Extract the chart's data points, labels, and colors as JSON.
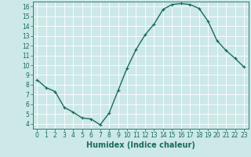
{
  "xlabel": "Humidex (Indice chaleur)",
  "ylabel": "",
  "x_values": [
    0,
    1,
    2,
    3,
    4,
    5,
    6,
    7,
    8,
    9,
    10,
    11,
    12,
    13,
    14,
    15,
    16,
    17,
    18,
    19,
    20,
    21,
    22,
    23
  ],
  "y_values": [
    8.5,
    7.7,
    7.3,
    5.7,
    5.2,
    4.6,
    4.5,
    3.9,
    5.1,
    7.4,
    9.7,
    11.6,
    13.1,
    14.2,
    15.7,
    16.2,
    16.3,
    16.2,
    15.8,
    14.5,
    12.5,
    11.5,
    10.7,
    9.8
  ],
  "line_color": "#1a6b5a",
  "marker": "+",
  "marker_size": 3,
  "bg_color": "#cce8e8",
  "grid_color": "#ffffff",
  "xlim": [
    -0.5,
    23.5
  ],
  "ylim": [
    3.5,
    16.5
  ],
  "xticks": [
    0,
    1,
    2,
    3,
    4,
    5,
    6,
    7,
    8,
    9,
    10,
    11,
    12,
    13,
    14,
    15,
    16,
    17,
    18,
    19,
    20,
    21,
    22,
    23
  ],
  "yticks": [
    4,
    5,
    6,
    7,
    8,
    9,
    10,
    11,
    12,
    13,
    14,
    15,
    16
  ],
  "tick_label_color": "#1a6b5a",
  "tick_label_fontsize": 5.5,
  "xlabel_fontsize": 7,
  "xlabel_color": "#1a6b5a",
  "line_width": 1.0
}
